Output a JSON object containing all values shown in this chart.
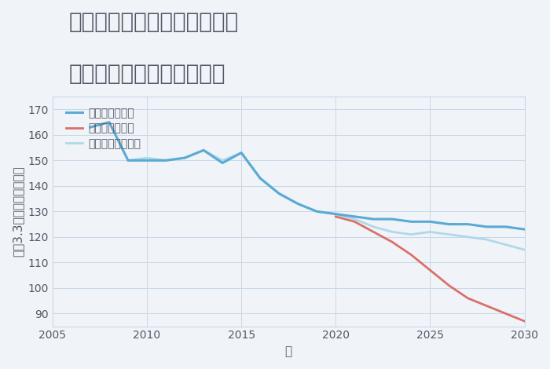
{
  "title_line1": "兵庫県姫路市飾磨区今在家の",
  "title_line2": "中古マンションの価格推移",
  "xlabel": "年",
  "ylabel": "坪（3.3㎡）単価（万円）",
  "ylim": [
    85,
    175
  ],
  "yticks": [
    90,
    100,
    110,
    120,
    130,
    140,
    150,
    160,
    170
  ],
  "xlim": [
    2005,
    2030
  ],
  "xticks": [
    2005,
    2010,
    2015,
    2020,
    2025,
    2030
  ],
  "background_color": "#f0f4f8",
  "plot_bg_color": "#f0f4f8",
  "grid_color": "#c8d8e8",
  "good_scenario": {
    "label": "グッドシナリオ",
    "color": "#5aaad4",
    "linewidth": 2.2,
    "x": [
      2007,
      2008,
      2009,
      2010,
      2011,
      2012,
      2013,
      2014,
      2015,
      2016,
      2017,
      2018,
      2019,
      2020,
      2021,
      2022,
      2023,
      2024,
      2025,
      2026,
      2027,
      2028,
      2029,
      2030
    ],
    "y": [
      163,
      165,
      150,
      150,
      150,
      151,
      154,
      149,
      153,
      143,
      137,
      133,
      130,
      129,
      128,
      127,
      127,
      126,
      126,
      125,
      125,
      124,
      124,
      123
    ]
  },
  "bad_scenario": {
    "label": "バッドシナリオ",
    "color": "#d9706a",
    "linewidth": 2.0,
    "x": [
      2020,
      2021,
      2022,
      2023,
      2024,
      2025,
      2026,
      2027,
      2028,
      2029,
      2030
    ],
    "y": [
      128,
      126,
      122,
      118,
      113,
      107,
      101,
      96,
      93,
      90,
      87
    ]
  },
  "normal_scenario": {
    "label": "ノーマルシナリオ",
    "color": "#b0d8ea",
    "linewidth": 2.0,
    "x": [
      2009,
      2010,
      2011,
      2012,
      2013,
      2014,
      2015,
      2016,
      2017,
      2018,
      2019,
      2020,
      2021,
      2022,
      2023,
      2024,
      2025,
      2026,
      2027,
      2028,
      2029,
      2030
    ],
    "y": [
      150,
      151,
      150,
      151,
      154,
      150,
      153,
      143,
      137,
      133,
      130,
      129,
      127,
      124,
      122,
      121,
      122,
      121,
      120,
      119,
      117,
      115
    ]
  },
  "legend_fontsize": 10,
  "title_fontsize": 20,
  "tick_fontsize": 10,
  "label_fontsize": 11,
  "title_color": "#555566",
  "tick_color": "#555566",
  "label_color": "#555566"
}
